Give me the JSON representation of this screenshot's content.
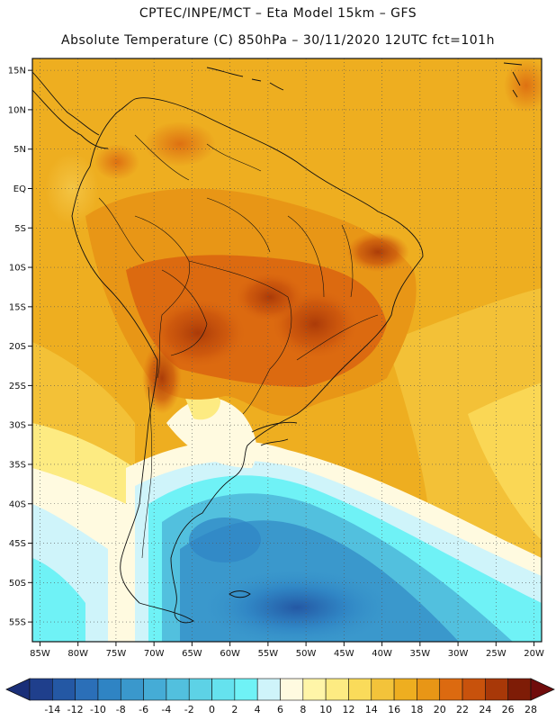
{
  "header": {
    "line1": "CPTEC/INPE/MCT –  Eta Model 15km – GFS",
    "line2": "Absolute Temperature (C) 850hPa – 30/11/2020 12UTC fct=101h"
  },
  "map": {
    "lat_ticks": [
      "15N",
      "10N",
      "5N",
      "EQ",
      "5S",
      "10S",
      "15S",
      "20S",
      "25S",
      "30S",
      "35S",
      "40S",
      "45S",
      "50S",
      "55S"
    ],
    "lon_ticks": [
      "85W",
      "80W",
      "75W",
      "70W",
      "65W",
      "60W",
      "55W",
      "50W",
      "45W",
      "40W",
      "35W",
      "30W",
      "25W",
      "20W"
    ],
    "lat_values": [
      15,
      10,
      5,
      0,
      -5,
      -10,
      -15,
      -20,
      -25,
      -30,
      -35,
      -40,
      -45,
      -50,
      -55
    ],
    "lon_values": [
      -85,
      -80,
      -75,
      -70,
      -65,
      -60,
      -55,
      -50,
      -45,
      -40,
      -35,
      -30,
      -25,
      -20
    ],
    "lat_range": [
      -57.5,
      16.5
    ],
    "lon_range": [
      -86,
      -19
    ]
  },
  "colorbar": {
    "labels": [
      "-14",
      "-12",
      "-10",
      "-8",
      "-6",
      "-4",
      "-2",
      "0",
      "2",
      "4",
      "6",
      "8",
      "10",
      "12",
      "14",
      "16",
      "18",
      "20",
      "22",
      "24",
      "26",
      "28"
    ],
    "colors": [
      "#1f3f8c",
      "#2458a4",
      "#2b6fb8",
      "#2f84c4",
      "#3a98cc",
      "#45acd6",
      "#52c0de",
      "#5dd2e6",
      "#65e2ee",
      "#6ff2f6",
      "#cff4fa",
      "#fffae0",
      "#fff5a8",
      "#fdeb82",
      "#fadb5a",
      "#f3c33a",
      "#eeae20",
      "#e89616",
      "#dc6a10",
      "#c8520c",
      "#a83808",
      "#7e1c06"
    ],
    "under_color": "#1a2f78",
    "over_color": "#700c0c"
  }
}
